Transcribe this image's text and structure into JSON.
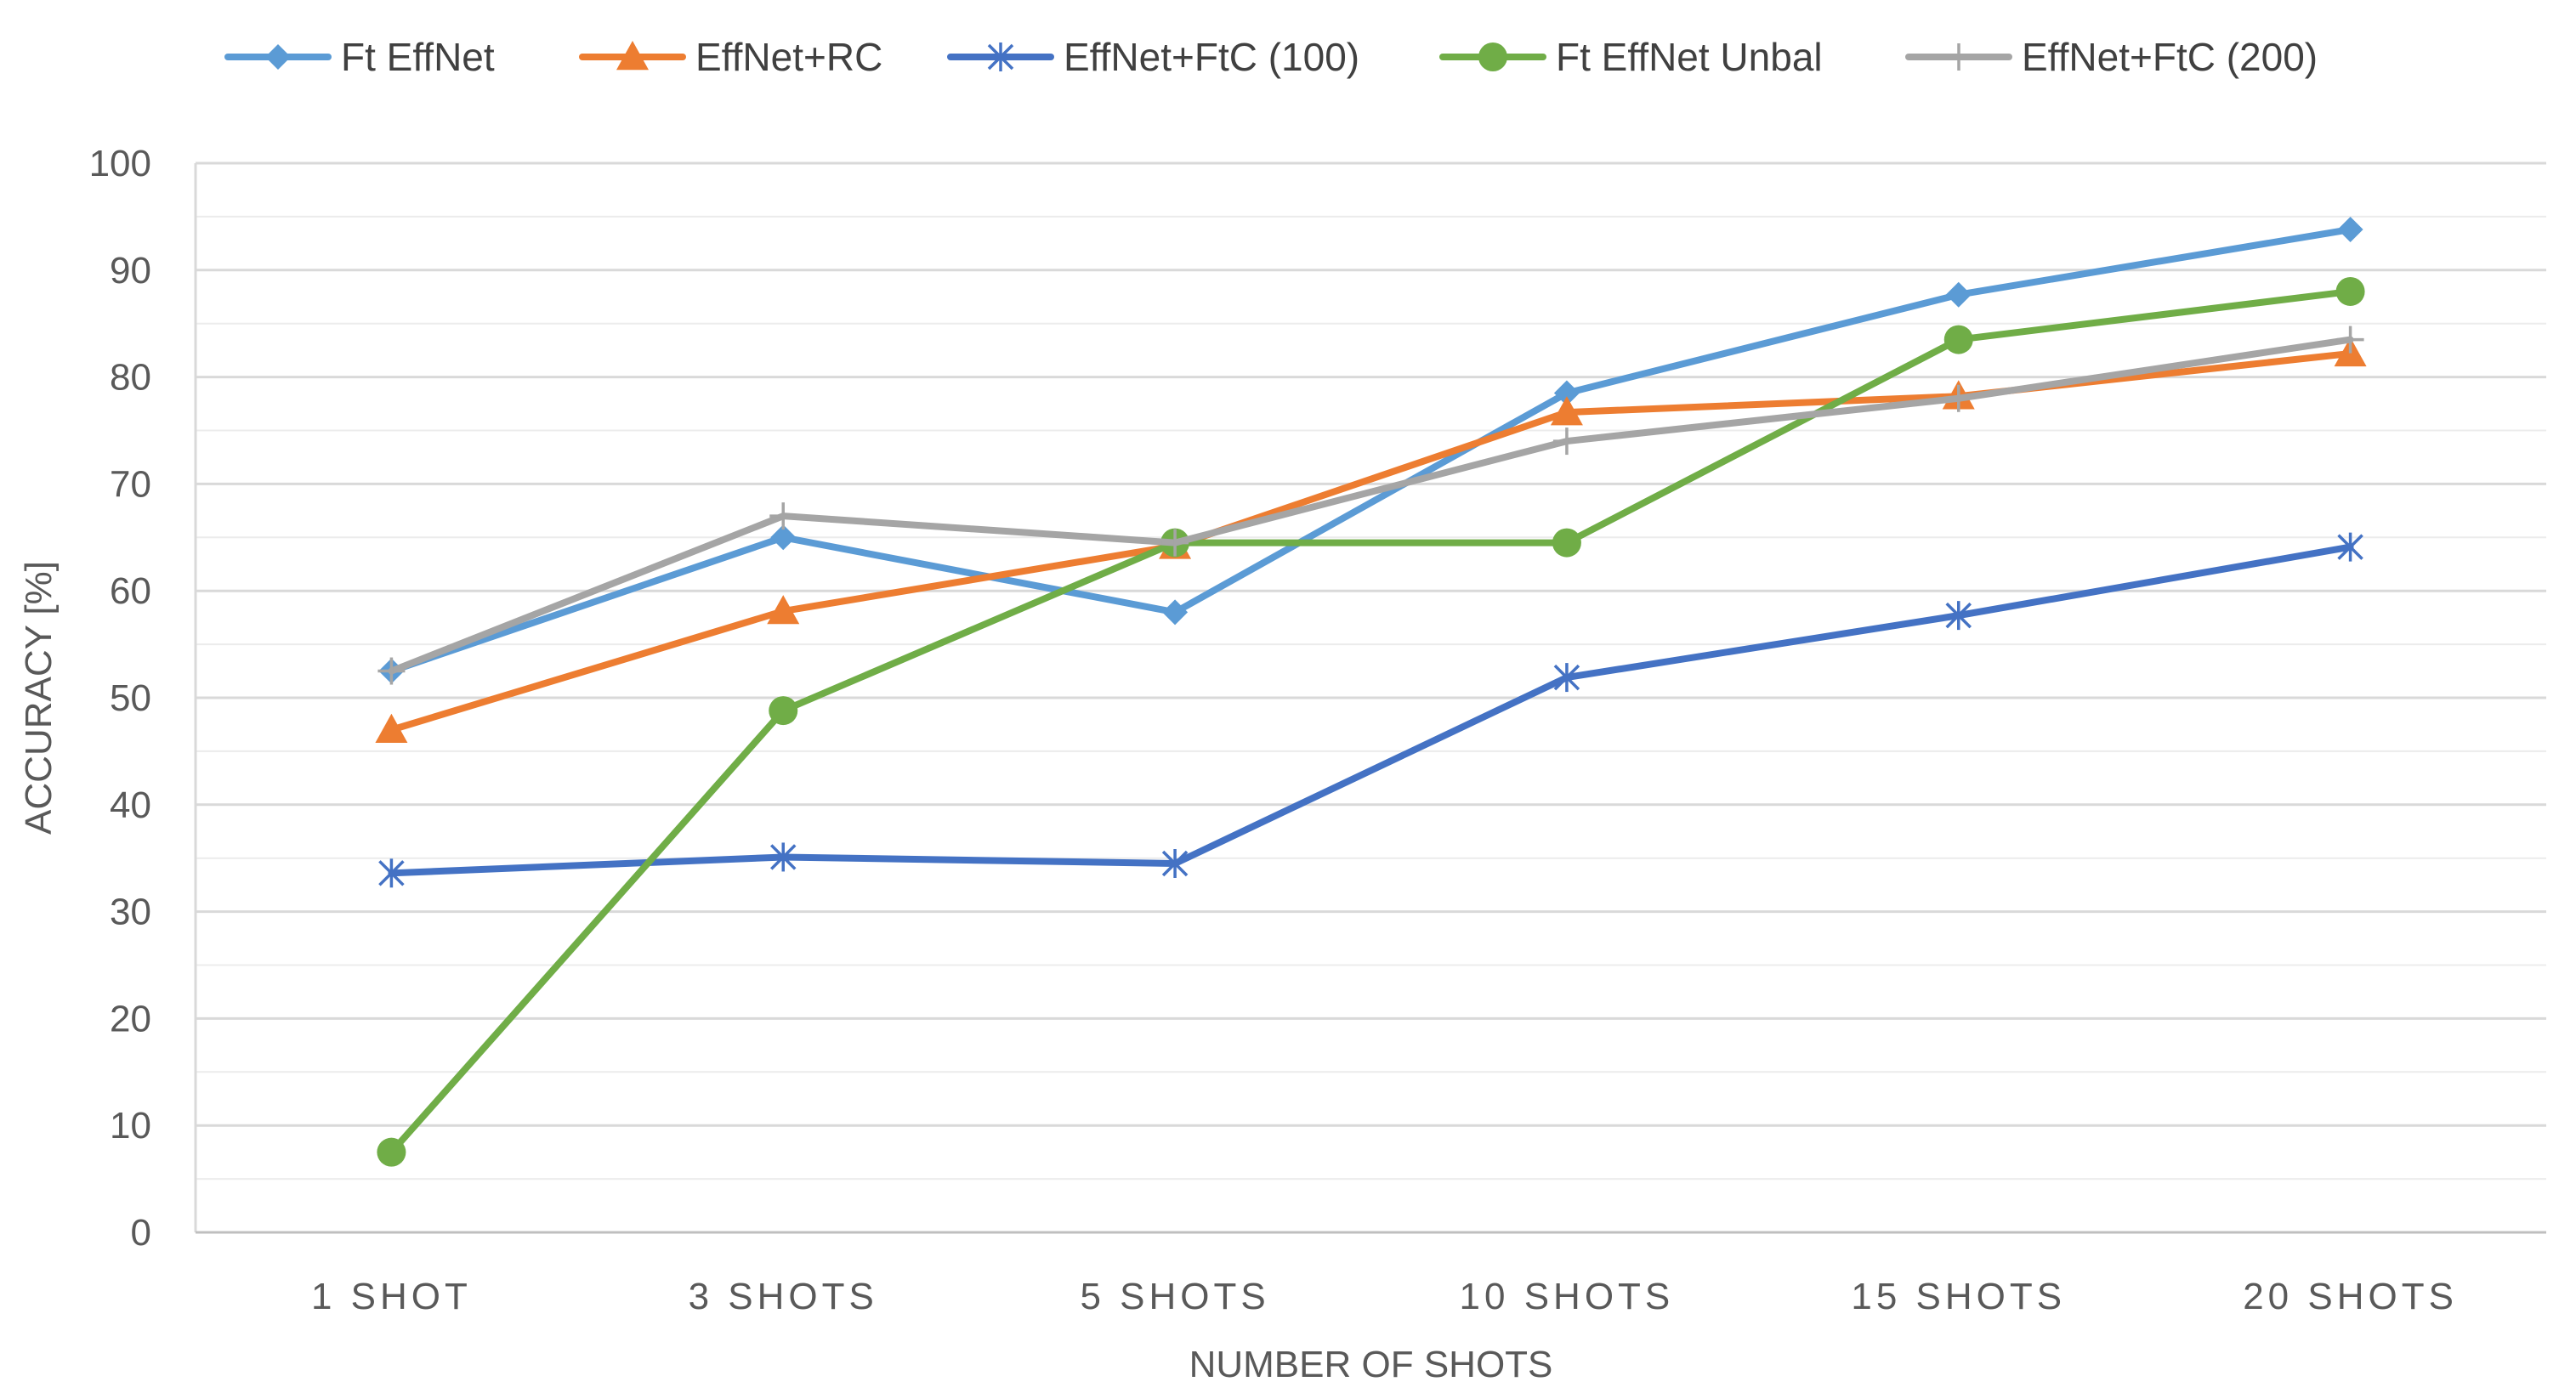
{
  "chart_data": {
    "type": "line",
    "title": "",
    "xlabel": "NUMBER OF SHOTS",
    "ylabel": "ACCURACY [%]",
    "ylim": [
      0,
      100
    ],
    "ytick_step": 10,
    "minor_grid_step": 5,
    "categories": [
      "1 SHOT",
      "3 SHOTS",
      "5 SHOTS",
      "10 SHOTS",
      "15 SHOTS",
      "20 SHOTS"
    ],
    "legend_position": "top",
    "series": [
      {
        "name": "Ft EffNet",
        "color": "#5b9bd5",
        "marker": "diamond",
        "values": [
          52.5,
          65.0,
          58.0,
          78.5,
          87.7,
          93.8
        ]
      },
      {
        "name": "EffNet+RC",
        "color": "#ed7d31",
        "marker": "triangle",
        "values": [
          47.0,
          58.1,
          64.2,
          76.7,
          78.2,
          82.2
        ]
      },
      {
        "name": "EffNet+FtC (100)",
        "color": "#4472c4",
        "marker": "star",
        "values": [
          33.6,
          35.1,
          34.5,
          51.9,
          57.7,
          64.1
        ]
      },
      {
        "name": "Ft EffNet Unbal",
        "color": "#70ad47",
        "marker": "circle",
        "values": [
          7.5,
          48.8,
          64.5,
          64.5,
          83.5,
          88.0
        ]
      },
      {
        "name": "EffNet+FtC (200)",
        "color": "#a5a5a5",
        "marker": "plus",
        "values": [
          52.5,
          67.0,
          64.5,
          74.0,
          78.0,
          83.5
        ]
      }
    ]
  }
}
